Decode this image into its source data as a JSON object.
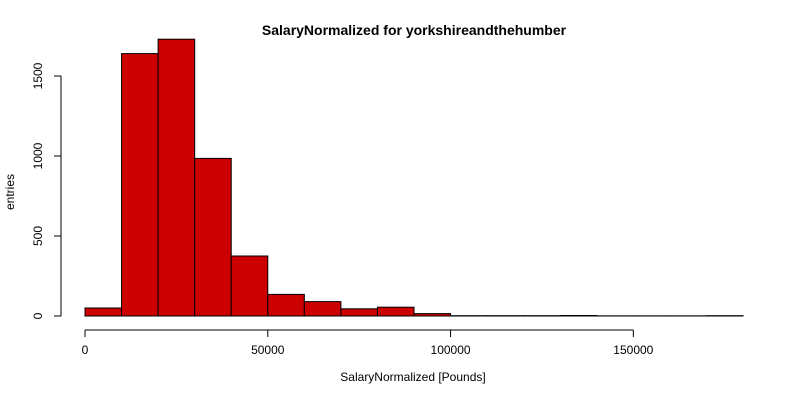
{
  "chart_data": {
    "type": "bar",
    "title": "SalaryNormalized for yorkshireandthehumber",
    "xlabel": "SalaryNormalized [Pounds]",
    "ylabel": "entries",
    "bin_edges": [
      0,
      10000,
      20000,
      30000,
      40000,
      50000,
      60000,
      70000,
      80000,
      90000,
      100000,
      110000,
      120000,
      130000,
      140000,
      150000,
      160000,
      170000,
      180000
    ],
    "values": [
      50,
      1640,
      1730,
      985,
      375,
      135,
      90,
      45,
      55,
      15,
      2,
      2,
      2,
      3,
      1,
      1,
      1,
      2
    ],
    "xlim": [
      0,
      180000
    ],
    "ylim": [
      0,
      1800
    ],
    "x_ticks": [
      0,
      50000,
      100000,
      150000
    ],
    "y_ticks": [
      0,
      500,
      1000,
      1500
    ],
    "bar_color": "#cc0000",
    "grid": false
  }
}
